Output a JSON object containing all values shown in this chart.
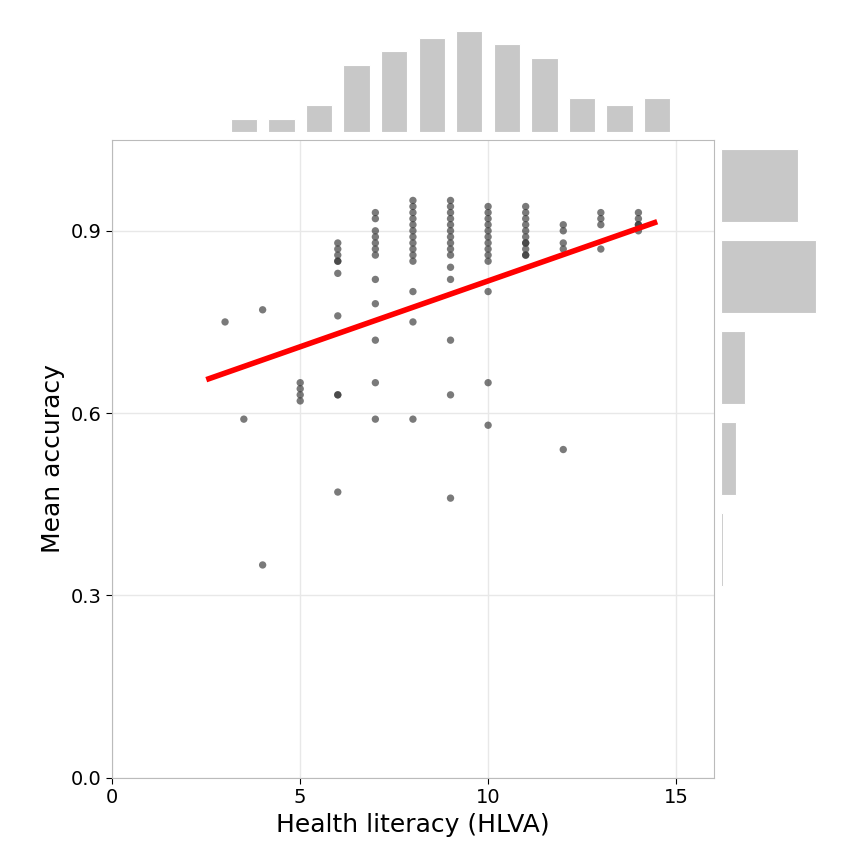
{
  "x": [
    3,
    3.5,
    4,
    4,
    5,
    5,
    5,
    5,
    6,
    6,
    6,
    6,
    6,
    6,
    6,
    6,
    6,
    6,
    7,
    7,
    7,
    7,
    7,
    7,
    7,
    7,
    7,
    7,
    7,
    7,
    8,
    8,
    8,
    8,
    8,
    8,
    8,
    8,
    8,
    8,
    8,
    8,
    8,
    8,
    9,
    9,
    9,
    9,
    9,
    9,
    9,
    9,
    9,
    9,
    9,
    9,
    9,
    9,
    9,
    10,
    10,
    10,
    10,
    10,
    10,
    10,
    10,
    10,
    10,
    10,
    10,
    10,
    11,
    11,
    11,
    11,
    11,
    11,
    11,
    11,
    11,
    11,
    11,
    12,
    12,
    12,
    12,
    12,
    13,
    13,
    13,
    13,
    14,
    14,
    14,
    14,
    14
  ],
  "y": [
    0.75,
    0.59,
    0.77,
    0.35,
    0.64,
    0.65,
    0.63,
    0.62,
    0.83,
    0.85,
    0.88,
    0.87,
    0.86,
    0.85,
    0.76,
    0.63,
    0.63,
    0.47,
    0.93,
    0.92,
    0.9,
    0.89,
    0.88,
    0.87,
    0.86,
    0.82,
    0.78,
    0.72,
    0.65,
    0.59,
    0.95,
    0.94,
    0.93,
    0.92,
    0.91,
    0.9,
    0.89,
    0.88,
    0.87,
    0.86,
    0.85,
    0.8,
    0.75,
    0.59,
    0.95,
    0.94,
    0.93,
    0.92,
    0.91,
    0.9,
    0.89,
    0.88,
    0.87,
    0.86,
    0.84,
    0.82,
    0.72,
    0.63,
    0.46,
    0.94,
    0.93,
    0.92,
    0.91,
    0.9,
    0.89,
    0.88,
    0.87,
    0.86,
    0.85,
    0.8,
    0.65,
    0.58,
    0.94,
    0.93,
    0.92,
    0.91,
    0.9,
    0.89,
    0.88,
    0.87,
    0.86,
    0.88,
    0.86,
    0.91,
    0.9,
    0.88,
    0.87,
    0.54,
    0.93,
    0.92,
    0.91,
    0.87,
    0.92,
    0.91,
    0.91,
    0.9,
    0.93
  ],
  "trend_x": [
    2.5,
    14.5
  ],
  "trend_y": [
    0.655,
    0.915
  ],
  "xlim": [
    0,
    16
  ],
  "ylim": [
    0.0,
    1.05
  ],
  "xticks": [
    0,
    5,
    10,
    15
  ],
  "yticks": [
    0.0,
    0.3,
    0.6,
    0.9
  ],
  "xlabel": "Health literacy (HLVA)",
  "ylabel": "Mean accuracy",
  "bg_color": "#ffffff",
  "point_color": "#333333",
  "trend_color": "red",
  "trend_lw": 4,
  "point_size": 28,
  "point_alpha": 0.65,
  "hist_color": "#c8c8c8",
  "grid_color": "#e8e8e8",
  "xlabel_fontsize": 18,
  "ylabel_fontsize": 18,
  "tick_fontsize": 14
}
